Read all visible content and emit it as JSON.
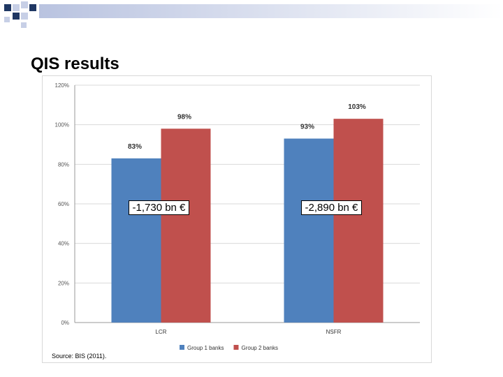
{
  "slide": {
    "title": "QIS results",
    "source": "Source: BIS (2011)."
  },
  "colors": {
    "series1": "#4f81bd",
    "series2": "#c0504d",
    "deco_dark": "#1f3763",
    "deco_light": "#c7cfe6"
  },
  "chart_data": {
    "type": "bar",
    "title": "",
    "xlabel": "",
    "ylabel": "",
    "categories": [
      "LCR",
      "NSFR"
    ],
    "series": [
      {
        "name": "Group 1 banks",
        "values": [
          83,
          93
        ],
        "labels": [
          "83%",
          "93%"
        ]
      },
      {
        "name": "Group 2 banks",
        "values": [
          98,
          103
        ],
        "labels": [
          "98%",
          "103%"
        ]
      }
    ],
    "ylim": [
      0,
      120
    ],
    "yticks": [
      0,
      20,
      40,
      60,
      80,
      100,
      120
    ],
    "yticklabels": [
      "0%",
      "20%",
      "40%",
      "60%",
      "80%",
      "100%",
      "120%"
    ],
    "grid": true,
    "legend": "bottom",
    "annotations": [
      "-1,730 bn €",
      "-2,890 bn €"
    ]
  }
}
